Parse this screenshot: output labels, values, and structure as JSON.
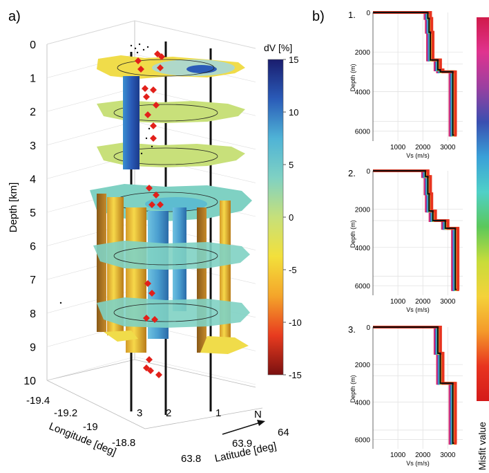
{
  "panel_a": {
    "label": "a)",
    "colorbar": {
      "title": "dV [%]",
      "ticks": [
        "15",
        "10",
        "5",
        "0",
        "-5",
        "-10",
        "-15"
      ],
      "range": [
        -15,
        15
      ],
      "colors": [
        "#1a1d6e",
        "#2a5bb8",
        "#4fb3d6",
        "#7fd1c3",
        "#c6e07a",
        "#f3e03b",
        "#f4a52a",
        "#e83b1f",
        "#7a1010"
      ]
    },
    "depth_axis": {
      "title": "Depth [km]",
      "ticks": [
        "0",
        "1",
        "2",
        "3",
        "4",
        "5",
        "6",
        "7",
        "8",
        "9",
        "10"
      ]
    },
    "longitude_axis": {
      "title": "Longitude [deg]",
      "ticks": [
        "-19.4",
        "-19.2",
        "-19",
        "-18.8"
      ]
    },
    "latitude_axis": {
      "title": "Latitude [deg]",
      "ticks": [
        "63.8",
        "63.9",
        "64"
      ]
    },
    "station_labels": [
      "3",
      "2",
      "1"
    ],
    "north_label": "N"
  },
  "panel_b": {
    "label": "b)",
    "colorbar_title": "Misfit value",
    "colorbar_colors": [
      "#d01a4a",
      "#e0338f",
      "#9b3fa0",
      "#3a4fb0",
      "#3aa0d8",
      "#4fd0c8",
      "#5bc85b",
      "#c8dc3a",
      "#f4d23a",
      "#f49a2a",
      "#e8341f",
      "#d41a1a"
    ],
    "subplots": [
      {
        "number": "1.",
        "y_ticks": [
          "0",
          "2000",
          "4000",
          "6000"
        ],
        "x_ticks": [
          "1000",
          "2000",
          "3000"
        ],
        "ylabel": "Depth (m)",
        "xlabel": "Vs (m/s)"
      },
      {
        "number": "2.",
        "y_ticks": [
          "0",
          "2000",
          "4000",
          "6000"
        ],
        "x_ticks": [
          "1000",
          "2000",
          "3000"
        ],
        "ylabel": "Depth (m)",
        "xlabel": "Vs (m/s)"
      },
      {
        "number": "3.",
        "y_ticks": [
          "0",
          "2000",
          "4000",
          "6000"
        ],
        "x_ticks": [
          "1000",
          "2000",
          "3000"
        ],
        "ylabel": "Depth (m)",
        "xlabel": "Vs (m/s)"
      }
    ]
  },
  "chart_data": [
    {
      "type": "heatmap",
      "title": "",
      "colorbar_label": "dV [%]",
      "colorbar_range": [
        -15,
        15
      ],
      "zlabel": "Depth [km]",
      "xlabel": "Longitude [deg]",
      "ylabel": "Latitude [deg]",
      "zlim": [
        0,
        10
      ],
      "xlim": [
        -19.4,
        -18.8
      ],
      "ylim": [
        63.8,
        64.0
      ],
      "slice_depths_km": [
        1,
        2,
        3,
        5,
        6.5,
        8
      ]
    },
    {
      "type": "line",
      "title": "1.",
      "xlabel": "Vs (m/s)",
      "ylabel": "Depth (m)",
      "xlim": [
        0,
        3600
      ],
      "ylim": [
        6500,
        0
      ],
      "series": [
        {
          "x": [
            0,
            2200,
            2200,
            2250,
            2250,
            2300,
            2300,
            2600,
            2600,
            2700,
            2700,
            3200,
            3200,
            3250
          ],
          "y": [
            0,
            0,
            300,
            300,
            1000,
            1000,
            2400,
            2400,
            2900,
            2900,
            3000,
            3000,
            6200,
            6200
          ]
        }
      ]
    },
    {
      "type": "line",
      "title": "2.",
      "xlabel": "Vs (m/s)",
      "ylabel": "Depth (m)",
      "xlim": [
        0,
        3600
      ],
      "ylim": [
        6500,
        0
      ],
      "series": [
        {
          "x": [
            0,
            2100,
            2100,
            2200,
            2200,
            2250,
            2250,
            2400,
            2400,
            2900,
            2900,
            3300,
            3300,
            3350
          ],
          "y": [
            0,
            0,
            300,
            300,
            1200,
            1200,
            2100,
            2100,
            2600,
            2600,
            3000,
            3000,
            6200,
            6200
          ]
        }
      ]
    },
    {
      "type": "line",
      "title": "3.",
      "xlabel": "Vs (m/s)",
      "ylabel": "Depth (m)",
      "xlim": [
        0,
        3600
      ],
      "ylim": [
        6500,
        0
      ],
      "series": [
        {
          "x": [
            0,
            2600,
            2600,
            2700,
            2700,
            3200,
            3200,
            3250
          ],
          "y": [
            0,
            0,
            1400,
            1400,
            3000,
            3000,
            6200,
            6200
          ]
        }
      ]
    }
  ]
}
